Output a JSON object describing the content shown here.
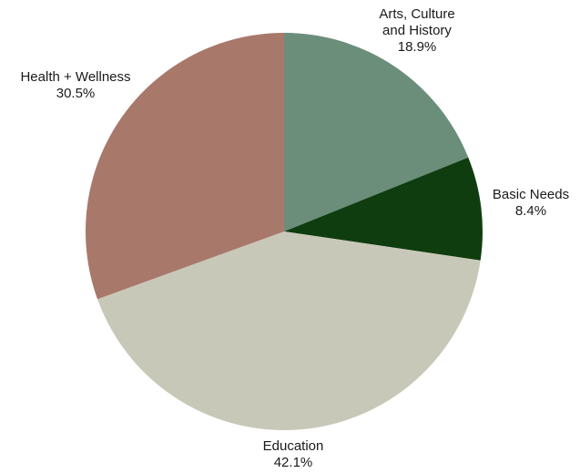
{
  "chart_data": {
    "type": "pie",
    "title": "",
    "slices": [
      {
        "label": "Arts, Culture and History",
        "label_lines": [
          "Arts, Culture",
          "and History"
        ],
        "value": 18.9,
        "display": "18.9%",
        "color": "#6b8e7b"
      },
      {
        "label": "Basic Needs",
        "label_lines": [
          "Basic Needs"
        ],
        "value": 8.4,
        "display": "8.4%",
        "color": "#0f3d0f"
      },
      {
        "label": "Education",
        "label_lines": [
          "Education"
        ],
        "value": 42.1,
        "display": "42.1%",
        "color": "#c8c8b8"
      },
      {
        "label": "Health + Wellness",
        "label_lines": [
          "Health + Wellness"
        ],
        "value": 30.5,
        "display": "30.5%",
        "color": "#a8786a"
      }
    ],
    "start_angle_deg": 0,
    "direction": "clockwise",
    "legend": "none"
  }
}
